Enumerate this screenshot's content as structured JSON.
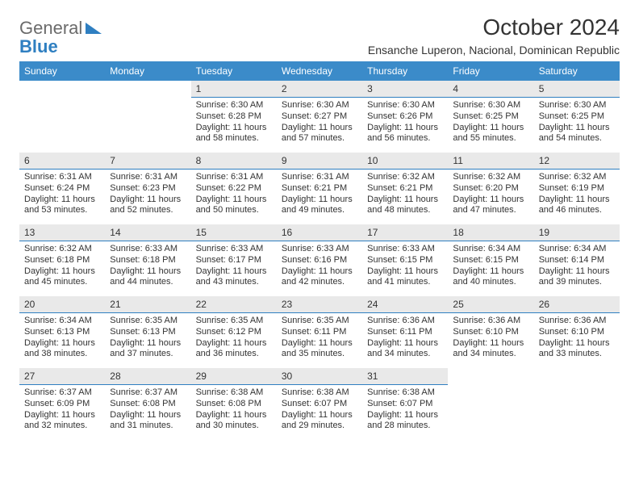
{
  "logo": {
    "gray": "General",
    "blue": "Blue"
  },
  "title": "October 2024",
  "location": "Ensanche Luperon, Nacional, Dominican Republic",
  "colors": {
    "header_bg": "#3b8bc9",
    "header_text": "#ffffff",
    "daynum_bg": "#e9e9e9",
    "daynum_border": "#2f7fc1",
    "logo_gray": "#6b6b6b",
    "logo_blue": "#2f7fc1",
    "body_text": "#333333",
    "page_bg": "#ffffff"
  },
  "day_headers": [
    "Sunday",
    "Monday",
    "Tuesday",
    "Wednesday",
    "Thursday",
    "Friday",
    "Saturday"
  ],
  "weeks": [
    [
      null,
      null,
      {
        "n": "1",
        "sr": "6:30 AM",
        "ss": "6:28 PM",
        "dl": "11 hours and 58 minutes."
      },
      {
        "n": "2",
        "sr": "6:30 AM",
        "ss": "6:27 PM",
        "dl": "11 hours and 57 minutes."
      },
      {
        "n": "3",
        "sr": "6:30 AM",
        "ss": "6:26 PM",
        "dl": "11 hours and 56 minutes."
      },
      {
        "n": "4",
        "sr": "6:30 AM",
        "ss": "6:25 PM",
        "dl": "11 hours and 55 minutes."
      },
      {
        "n": "5",
        "sr": "6:30 AM",
        "ss": "6:25 PM",
        "dl": "11 hours and 54 minutes."
      }
    ],
    [
      {
        "n": "6",
        "sr": "6:31 AM",
        "ss": "6:24 PM",
        "dl": "11 hours and 53 minutes."
      },
      {
        "n": "7",
        "sr": "6:31 AM",
        "ss": "6:23 PM",
        "dl": "11 hours and 52 minutes."
      },
      {
        "n": "8",
        "sr": "6:31 AM",
        "ss": "6:22 PM",
        "dl": "11 hours and 50 minutes."
      },
      {
        "n": "9",
        "sr": "6:31 AM",
        "ss": "6:21 PM",
        "dl": "11 hours and 49 minutes."
      },
      {
        "n": "10",
        "sr": "6:32 AM",
        "ss": "6:21 PM",
        "dl": "11 hours and 48 minutes."
      },
      {
        "n": "11",
        "sr": "6:32 AM",
        "ss": "6:20 PM",
        "dl": "11 hours and 47 minutes."
      },
      {
        "n": "12",
        "sr": "6:32 AM",
        "ss": "6:19 PM",
        "dl": "11 hours and 46 minutes."
      }
    ],
    [
      {
        "n": "13",
        "sr": "6:32 AM",
        "ss": "6:18 PM",
        "dl": "11 hours and 45 minutes."
      },
      {
        "n": "14",
        "sr": "6:33 AM",
        "ss": "6:18 PM",
        "dl": "11 hours and 44 minutes."
      },
      {
        "n": "15",
        "sr": "6:33 AM",
        "ss": "6:17 PM",
        "dl": "11 hours and 43 minutes."
      },
      {
        "n": "16",
        "sr": "6:33 AM",
        "ss": "6:16 PM",
        "dl": "11 hours and 42 minutes."
      },
      {
        "n": "17",
        "sr": "6:33 AM",
        "ss": "6:15 PM",
        "dl": "11 hours and 41 minutes."
      },
      {
        "n": "18",
        "sr": "6:34 AM",
        "ss": "6:15 PM",
        "dl": "11 hours and 40 minutes."
      },
      {
        "n": "19",
        "sr": "6:34 AM",
        "ss": "6:14 PM",
        "dl": "11 hours and 39 minutes."
      }
    ],
    [
      {
        "n": "20",
        "sr": "6:34 AM",
        "ss": "6:13 PM",
        "dl": "11 hours and 38 minutes."
      },
      {
        "n": "21",
        "sr": "6:35 AM",
        "ss": "6:13 PM",
        "dl": "11 hours and 37 minutes."
      },
      {
        "n": "22",
        "sr": "6:35 AM",
        "ss": "6:12 PM",
        "dl": "11 hours and 36 minutes."
      },
      {
        "n": "23",
        "sr": "6:35 AM",
        "ss": "6:11 PM",
        "dl": "11 hours and 35 minutes."
      },
      {
        "n": "24",
        "sr": "6:36 AM",
        "ss": "6:11 PM",
        "dl": "11 hours and 34 minutes."
      },
      {
        "n": "25",
        "sr": "6:36 AM",
        "ss": "6:10 PM",
        "dl": "11 hours and 34 minutes."
      },
      {
        "n": "26",
        "sr": "6:36 AM",
        "ss": "6:10 PM",
        "dl": "11 hours and 33 minutes."
      }
    ],
    [
      {
        "n": "27",
        "sr": "6:37 AM",
        "ss": "6:09 PM",
        "dl": "11 hours and 32 minutes."
      },
      {
        "n": "28",
        "sr": "6:37 AM",
        "ss": "6:08 PM",
        "dl": "11 hours and 31 minutes."
      },
      {
        "n": "29",
        "sr": "6:38 AM",
        "ss": "6:08 PM",
        "dl": "11 hours and 30 minutes."
      },
      {
        "n": "30",
        "sr": "6:38 AM",
        "ss": "6:07 PM",
        "dl": "11 hours and 29 minutes."
      },
      {
        "n": "31",
        "sr": "6:38 AM",
        "ss": "6:07 PM",
        "dl": "11 hours and 28 minutes."
      },
      null,
      null
    ]
  ],
  "labels": {
    "sunrise": "Sunrise:",
    "sunset": "Sunset:",
    "daylight": "Daylight:"
  }
}
